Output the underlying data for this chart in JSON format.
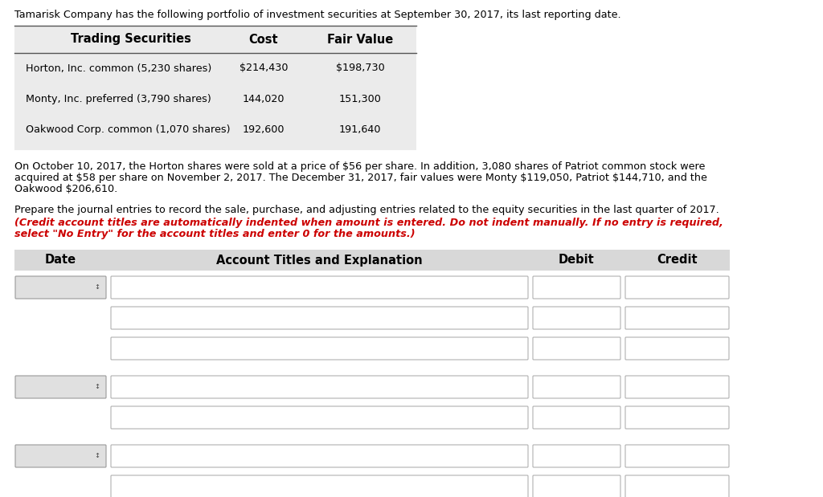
{
  "bg_color": "#ffffff",
  "text_color": "#000000",
  "red_color": "#cc0000",
  "table_bg": "#e8e8e8",
  "journal_header_bg": "#d8d8d8",
  "box_bg": "#ffffff",
  "box_border": "#aaaaaa",
  "intro_text": "Tamarisk Company has the following portfolio of investment securities at September 30, 2017, its last reporting date.",
  "table_header_col1": "Trading Securities",
  "table_header_col2": "Cost",
  "table_header_col3": "Fair Value",
  "table_rows": [
    [
      "Horton, Inc. common (5,230 shares)",
      "$214,430",
      "$198,730"
    ],
    [
      "Monty, Inc. preferred (3,790 shares)",
      "144,020",
      "151,300"
    ],
    [
      "Oakwood Corp. common (1,070 shares)",
      "192,600",
      "191,640"
    ]
  ],
  "para1_lines": [
    "On October 10, 2017, the Horton shares were sold at a price of $56 per share. In addition, 3,080 shares of Patriot common stock were",
    "acquired at $58 per share on November 2, 2017. The December 31, 2017, fair values were Monty $119,050, Patriot $144,710, and the",
    "Oakwood $206,610."
  ],
  "para2": "Prepare the journal entries to record the sale, purchase, and adjusting entries related to the equity securities in the last quarter of 2017.",
  "para2_italic_lines": [
    "(Credit account titles are automatically indented when amount is entered. Do not indent manually. If no entry is required,",
    "select \"No Entry\" for the account titles and enter 0 for the amounts.)"
  ],
  "journal_header_date": "Date",
  "journal_header_account": "Account Titles and Explanation",
  "journal_header_debit": "Debit",
  "journal_header_credit": "Credit",
  "font_size": 9.2,
  "font_size_table": 10.5,
  "groups": [
    3,
    2,
    2
  ]
}
